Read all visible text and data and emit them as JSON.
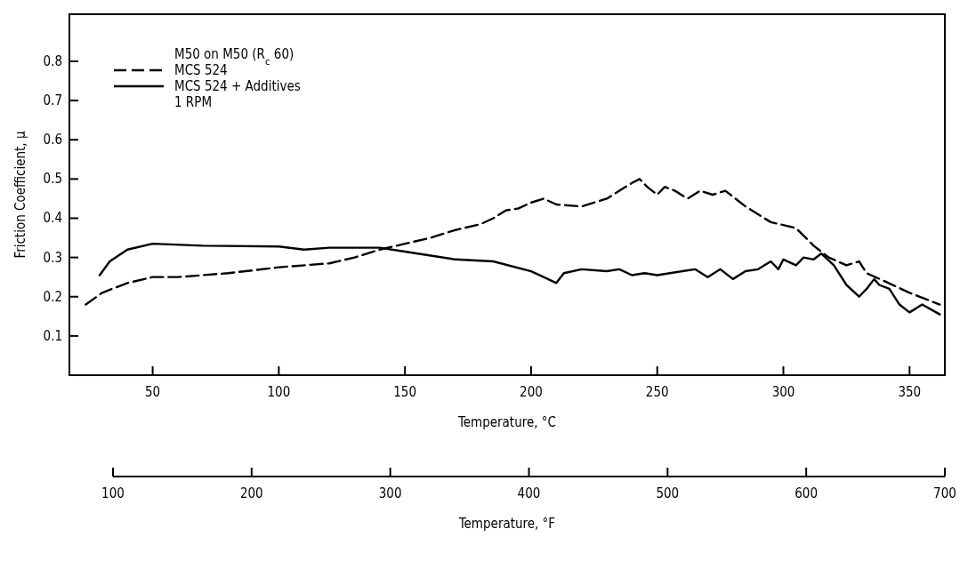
{
  "chart_data": {
    "type": "line",
    "xlabel": "Temperature, °C",
    "ylabel": "Friction Coefficient, μ",
    "x2label": "Temperature, °F",
    "legend_title": "M50 on M50 (R$_{c}$ 60)",
    "annotations": [
      "1 RPM"
    ],
    "legend": "top left",
    "grid": false,
    "xlim": [
      17,
      364
    ],
    "xticks": [
      50,
      100,
      150,
      200,
      250,
      300,
      350
    ],
    "x2lim": [
      100,
      700
    ],
    "x2ticks": [
      100,
      200,
      300,
      400,
      500,
      600,
      700
    ],
    "ylim": [
      0,
      0.92
    ],
    "yticks": [
      0.1,
      0.2,
      0.3,
      0.4,
      0.5,
      0.6,
      0.7,
      0.8
    ],
    "series": [
      {
        "name": "MCS 524",
        "color": "#000000",
        "line_style": "dashed",
        "x": [
          23.5,
          30,
          40,
          50,
          60,
          80,
          100,
          120,
          130,
          140,
          150,
          160,
          170,
          180,
          185,
          190,
          195,
          200,
          205,
          210,
          220,
          230,
          235,
          240,
          243,
          246,
          250,
          253,
          257,
          262,
          267,
          272,
          277,
          285,
          295,
          305,
          312,
          318,
          325,
          330,
          333,
          340,
          350,
          362
        ],
        "values": [
          0.18,
          0.21,
          0.235,
          0.25,
          0.25,
          0.26,
          0.275,
          0.285,
          0.3,
          0.32,
          0.335,
          0.35,
          0.37,
          0.385,
          0.4,
          0.42,
          0.425,
          0.44,
          0.45,
          0.435,
          0.43,
          0.45,
          0.47,
          0.49,
          0.5,
          0.48,
          0.46,
          0.48,
          0.47,
          0.45,
          0.47,
          0.46,
          0.47,
          0.43,
          0.39,
          0.375,
          0.33,
          0.3,
          0.28,
          0.29,
          0.26,
          0.24,
          0.21,
          0.18
        ]
      },
      {
        "name": "MCS 524 + Additives",
        "color": "#000000",
        "line_style": "solid",
        "x": [
          29,
          33,
          40,
          50,
          70,
          100,
          110,
          120,
          140,
          150,
          170,
          185,
          200,
          205,
          210,
          213,
          220,
          230,
          235,
          240,
          245,
          250,
          255,
          260,
          265,
          270,
          275,
          280,
          285,
          290,
          295,
          298,
          300,
          305,
          308,
          312,
          315,
          320,
          325,
          330,
          333,
          336,
          338,
          342,
          346,
          350,
          355,
          362
        ],
        "values": [
          0.255,
          0.29,
          0.32,
          0.335,
          0.33,
          0.328,
          0.32,
          0.325,
          0.325,
          0.315,
          0.295,
          0.29,
          0.265,
          0.25,
          0.235,
          0.26,
          0.27,
          0.265,
          0.27,
          0.255,
          0.26,
          0.255,
          0.26,
          0.265,
          0.27,
          0.25,
          0.27,
          0.245,
          0.265,
          0.27,
          0.29,
          0.27,
          0.295,
          0.28,
          0.3,
          0.295,
          0.31,
          0.28,
          0.23,
          0.2,
          0.22,
          0.245,
          0.23,
          0.22,
          0.18,
          0.16,
          0.18,
          0.155
        ]
      }
    ]
  }
}
